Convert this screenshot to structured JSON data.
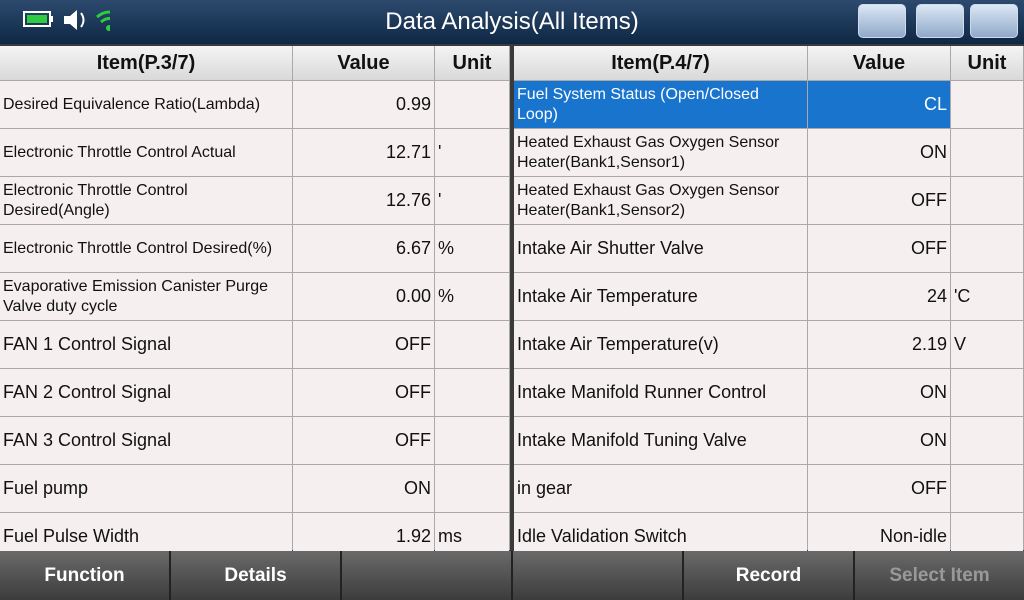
{
  "header": {
    "title": "Data Analysis(All Items)"
  },
  "left_table": {
    "columns": [
      "Item(P.3/7)",
      "Value",
      "Unit"
    ],
    "rows": [
      {
        "item": "Desired Equivalence Ratio(Lambda)",
        "value": "0.99"
      },
      {
        "item": "Electronic Throttle Control Actual",
        "value": "12.71",
        "unit": "'"
      },
      {
        "item": "Electronic Throttle Control Desired(Angle)",
        "value": "12.76",
        "unit": "'"
      },
      {
        "item": "Electronic Throttle Control Desired(%)",
        "value": "6.67",
        "unit": "%"
      },
      {
        "item": "Evaporative Emission Canister Purge Valve duty cycle",
        "value": "0.00",
        "unit": "%"
      },
      {
        "item": "FAN 1 Control Signal",
        "value": "OFF"
      },
      {
        "item": "FAN 2 Control Signal",
        "value": "OFF"
      },
      {
        "item": "FAN 3 Control Signal",
        "value": "OFF"
      },
      {
        "item": "Fuel pump",
        "value": "ON"
      },
      {
        "item": "Fuel Pulse Width",
        "value": "1.92",
        "unit": "ms"
      }
    ]
  },
  "right_table": {
    "columns": [
      "Item(P.4/7)",
      "Value",
      "Unit"
    ],
    "rows": [
      {
        "item": "Fuel System Status (Open/Closed Loop)",
        "value": "CL",
        "selected": true
      },
      {
        "item": "Heated Exhaust Gas Oxygen Sensor Heater(Bank1,Sensor1)",
        "value": "ON"
      },
      {
        "item": "Heated Exhaust Gas Oxygen Sensor Heater(Bank1,Sensor2)",
        "value": "OFF"
      },
      {
        "item": "Intake Air Shutter Valve",
        "value": "OFF"
      },
      {
        "item": "Intake Air Temperature",
        "value": "24",
        "unit": "'C"
      },
      {
        "item": "Intake Air Temperature(v)",
        "value": "2.19",
        "unit": "V"
      },
      {
        "item": "Intake Manifold Runner Control",
        "value": "ON"
      },
      {
        "item": "Intake Manifold Tuning Valve",
        "value": "ON"
      },
      {
        "item": "in gear",
        "value": "OFF"
      },
      {
        "item": "Idle Validation Switch",
        "value": "Non-idle"
      }
    ]
  },
  "footer": {
    "buttons": [
      "Function",
      "Details",
      "Record",
      "Select Item"
    ]
  }
}
